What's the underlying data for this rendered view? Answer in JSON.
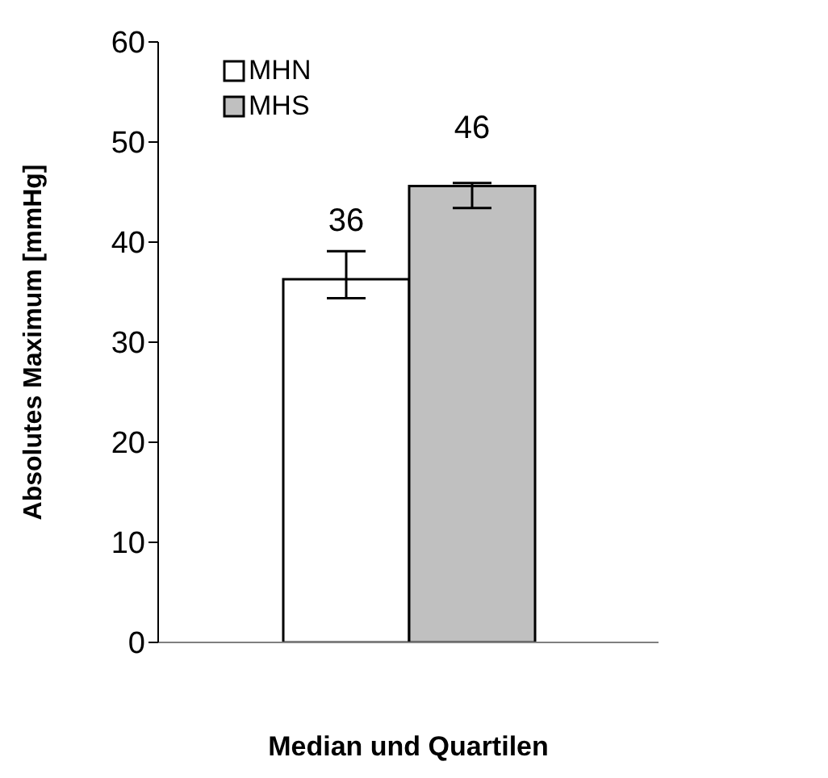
{
  "chart_data": {
    "type": "bar",
    "xlabel": "Median und Quartilen",
    "ylabel": "Absolutes Maximum [mmHg]",
    "categories": [
      null
    ],
    "series": [
      {
        "name": "MHN",
        "color": "#ffffff",
        "values": [
          36.3
        ],
        "errors": [
          [
            34.4,
            39.1
          ]
        ],
        "value_labels": [
          "36"
        ]
      },
      {
        "name": "MHS",
        "color": "#c0c0c0",
        "values": [
          45.6
        ],
        "errors": [
          [
            43.4,
            45.9
          ]
        ],
        "value_labels": [
          "46"
        ]
      }
    ],
    "ylim": [
      0,
      60
    ],
    "yticks": [
      0,
      10,
      20,
      30,
      40,
      50,
      60
    ],
    "legend": "top left"
  }
}
